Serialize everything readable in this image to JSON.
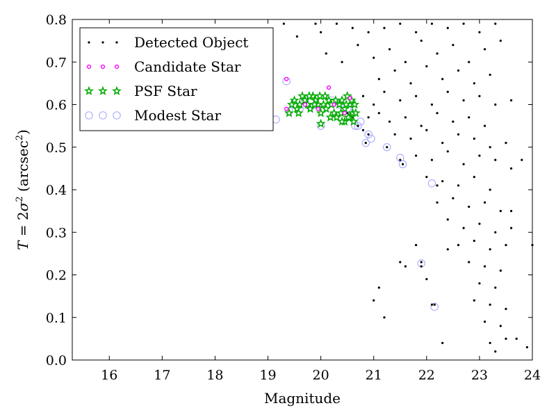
{
  "chart_data": {
    "type": "scatter",
    "xlabel": "Magnitude",
    "ylabel": {
      "T": "T",
      "eq": " = 2",
      "sigma": "σ",
      "sq": "2",
      "unit_open": " (arcsec",
      "unit_sq": "2",
      "unit_close": ")"
    },
    "xlim": [
      15.3,
      24
    ],
    "ylim": [
      0,
      0.8
    ],
    "xticks": [
      16,
      17,
      18,
      19,
      20,
      21,
      22,
      23,
      24
    ],
    "yticks": [
      0.0,
      0.1,
      0.2,
      0.3,
      0.4,
      0.5,
      0.6,
      0.7,
      0.8
    ],
    "legend_position": "upper-left",
    "series": [
      {
        "name": "Detected Object",
        "marker": "dot",
        "color": "#000000",
        "points": [
          [
            19.3,
            0.79
          ],
          [
            19.55,
            0.76
          ],
          [
            19.9,
            0.79
          ],
          [
            20.0,
            0.77
          ],
          [
            20.3,
            0.79
          ],
          [
            20.6,
            0.78
          ],
          [
            20.9,
            0.77
          ],
          [
            21.2,
            0.78
          ],
          [
            21.5,
            0.79
          ],
          [
            21.8,
            0.77
          ],
          [
            22.1,
            0.79
          ],
          [
            22.4,
            0.78
          ],
          [
            22.7,
            0.79
          ],
          [
            23.0,
            0.77
          ],
          [
            23.3,
            0.79
          ],
          [
            20.1,
            0.72
          ],
          [
            20.4,
            0.7
          ],
          [
            20.7,
            0.74
          ],
          [
            21.0,
            0.71
          ],
          [
            21.3,
            0.73
          ],
          [
            21.6,
            0.7
          ],
          [
            21.9,
            0.75
          ],
          [
            22.2,
            0.72
          ],
          [
            22.5,
            0.74
          ],
          [
            22.8,
            0.7
          ],
          [
            23.1,
            0.73
          ],
          [
            23.4,
            0.75
          ],
          [
            21.1,
            0.66
          ],
          [
            21.4,
            0.68
          ],
          [
            21.7,
            0.65
          ],
          [
            22.0,
            0.69
          ],
          [
            22.3,
            0.66
          ],
          [
            22.6,
            0.68
          ],
          [
            22.9,
            0.65
          ],
          [
            23.2,
            0.67
          ],
          [
            20.8,
            0.62
          ],
          [
            21.0,
            0.6
          ],
          [
            21.2,
            0.63
          ],
          [
            21.5,
            0.61
          ],
          [
            21.8,
            0.62
          ],
          [
            22.1,
            0.6
          ],
          [
            22.4,
            0.63
          ],
          [
            22.7,
            0.61
          ],
          [
            23.0,
            0.62
          ],
          [
            23.3,
            0.6
          ],
          [
            23.6,
            0.61
          ],
          [
            20.9,
            0.57
          ],
          [
            21.1,
            0.58
          ],
          [
            21.3,
            0.56
          ],
          [
            21.6,
            0.57
          ],
          [
            21.9,
            0.55
          ],
          [
            22.2,
            0.58
          ],
          [
            22.5,
            0.56
          ],
          [
            22.8,
            0.57
          ],
          [
            23.1,
            0.55
          ],
          [
            21.4,
            0.53
          ],
          [
            21.7,
            0.52
          ],
          [
            22.0,
            0.54
          ],
          [
            22.3,
            0.51
          ],
          [
            22.6,
            0.53
          ],
          [
            22.9,
            0.52
          ],
          [
            23.2,
            0.5
          ],
          [
            23.5,
            0.51
          ],
          [
            21.8,
            0.48
          ],
          [
            22.1,
            0.47
          ],
          [
            22.4,
            0.49
          ],
          [
            22.7,
            0.46
          ],
          [
            23.0,
            0.48
          ],
          [
            23.3,
            0.47
          ],
          [
            23.6,
            0.45
          ],
          [
            23.8,
            0.47
          ],
          [
            22.0,
            0.43
          ],
          [
            22.3,
            0.42
          ],
          [
            22.6,
            0.41
          ],
          [
            22.9,
            0.43
          ],
          [
            23.2,
            0.4
          ],
          [
            22.2,
            0.37
          ],
          [
            22.5,
            0.38
          ],
          [
            22.8,
            0.36
          ],
          [
            23.1,
            0.37
          ],
          [
            23.4,
            0.35
          ],
          [
            22.4,
            0.33
          ],
          [
            22.7,
            0.31
          ],
          [
            23.0,
            0.32
          ],
          [
            23.3,
            0.3
          ],
          [
            23.6,
            0.31
          ],
          [
            22.6,
            0.27
          ],
          [
            22.9,
            0.28
          ],
          [
            23.2,
            0.26
          ],
          [
            23.5,
            0.27
          ],
          [
            24.0,
            0.27
          ],
          [
            21.8,
            0.27
          ],
          [
            21.9,
            0.22
          ],
          [
            22.0,
            0.19
          ],
          [
            22.8,
            0.23
          ],
          [
            23.1,
            0.22
          ],
          [
            23.4,
            0.21
          ],
          [
            23.0,
            0.18
          ],
          [
            23.3,
            0.17
          ],
          [
            22.9,
            0.14
          ],
          [
            23.2,
            0.13
          ],
          [
            23.5,
            0.12
          ],
          [
            23.1,
            0.09
          ],
          [
            23.4,
            0.08
          ],
          [
            23.2,
            0.04
          ],
          [
            23.5,
            0.05
          ],
          [
            23.7,
            0.05
          ],
          [
            23.9,
            0.03
          ],
          [
            22.3,
            0.04
          ],
          [
            23.3,
            0.02
          ],
          [
            21.0,
            0.14
          ],
          [
            21.1,
            0.17
          ],
          [
            21.2,
            0.1
          ],
          [
            22.1,
            0.13
          ],
          [
            22.2,
            0.41
          ],
          [
            23.6,
            0.35
          ],
          [
            21.5,
            0.23
          ],
          [
            21.6,
            0.22
          ],
          [
            22.4,
            0.26
          ],
          [
            20.5,
            0.58
          ],
          [
            20.6,
            0.57
          ],
          [
            20.7,
            0.55
          ],
          [
            20.8,
            0.54
          ],
          [
            20.9,
            0.53
          ],
          [
            20.85,
            0.51
          ],
          [
            21.25,
            0.5
          ],
          [
            21.5,
            0.47
          ],
          [
            21.55,
            0.46
          ],
          [
            21.9,
            0.23
          ],
          [
            22.15,
            0.13
          ]
        ]
      },
      {
        "name": "Candidate Star",
        "marker": "circle",
        "color": "#ff00ff",
        "points": [
          [
            19.35,
            0.66
          ],
          [
            20.15,
            0.64
          ],
          [
            20.55,
            0.615
          ],
          [
            19.35,
            0.59
          ],
          [
            19.7,
            0.6
          ],
          [
            19.95,
            0.59
          ],
          [
            20.25,
            0.6
          ],
          [
            20.45,
            0.58
          ]
        ]
      },
      {
        "name": "PSF Star",
        "marker": "star",
        "color": "#00aa00",
        "points": [
          [
            19.5,
            0.61
          ],
          [
            19.55,
            0.59
          ],
          [
            19.6,
            0.6
          ],
          [
            19.65,
            0.62
          ],
          [
            19.7,
            0.61
          ],
          [
            19.75,
            0.6
          ],
          [
            19.8,
            0.59
          ],
          [
            19.85,
            0.62
          ],
          [
            19.9,
            0.61
          ],
          [
            19.95,
            0.6
          ],
          [
            20.0,
            0.58
          ],
          [
            20.05,
            0.6
          ],
          [
            20.1,
            0.59
          ],
          [
            20.15,
            0.61
          ],
          [
            20.2,
            0.6
          ],
          [
            20.25,
            0.58
          ],
          [
            20.3,
            0.57
          ],
          [
            20.35,
            0.6
          ],
          [
            20.4,
            0.61
          ],
          [
            20.45,
            0.59
          ],
          [
            20.5,
            0.62
          ],
          [
            20.55,
            0.6
          ],
          [
            20.6,
            0.58
          ],
          [
            20.62,
            0.56
          ],
          [
            20.55,
            0.57
          ],
          [
            20.45,
            0.56
          ],
          [
            19.4,
            0.58
          ],
          [
            19.45,
            0.6
          ],
          [
            19.58,
            0.58
          ],
          [
            19.78,
            0.62
          ],
          [
            19.88,
            0.6
          ],
          [
            20.08,
            0.62
          ],
          [
            20.18,
            0.57
          ],
          [
            20.28,
            0.61
          ],
          [
            20.38,
            0.58
          ],
          [
            20.48,
            0.6
          ],
          [
            20.58,
            0.61
          ],
          [
            20.64,
            0.6
          ],
          [
            20.66,
            0.58
          ],
          [
            20.4,
            0.56
          ],
          [
            20.52,
            0.57
          ],
          [
            20.0,
            0.555
          ],
          [
            19.98,
            0.62
          ]
        ]
      },
      {
        "name": "Modest Star",
        "marker": "open-circle",
        "color": "#b0b0ff",
        "points": [
          [
            19.35,
            0.655
          ],
          [
            19.5,
            0.6
          ],
          [
            19.7,
            0.61
          ],
          [
            19.9,
            0.6
          ],
          [
            20.05,
            0.59
          ],
          [
            20.2,
            0.61
          ],
          [
            20.35,
            0.6
          ],
          [
            20.5,
            0.59
          ],
          [
            20.6,
            0.58
          ],
          [
            20.65,
            0.55
          ],
          [
            20.7,
            0.55
          ],
          [
            20.75,
            0.56
          ],
          [
            20.85,
            0.51
          ],
          [
            20.9,
            0.53
          ],
          [
            20.95,
            0.52
          ],
          [
            20.0,
            0.55
          ],
          [
            21.25,
            0.5
          ],
          [
            21.5,
            0.475
          ],
          [
            21.55,
            0.46
          ],
          [
            22.1,
            0.415
          ],
          [
            21.9,
            0.227
          ],
          [
            22.15,
            0.125
          ],
          [
            19.15,
            0.565
          ],
          [
            19.4,
            0.585
          ],
          [
            19.6,
            0.59
          ],
          [
            19.8,
            0.595
          ]
        ]
      }
    ]
  }
}
